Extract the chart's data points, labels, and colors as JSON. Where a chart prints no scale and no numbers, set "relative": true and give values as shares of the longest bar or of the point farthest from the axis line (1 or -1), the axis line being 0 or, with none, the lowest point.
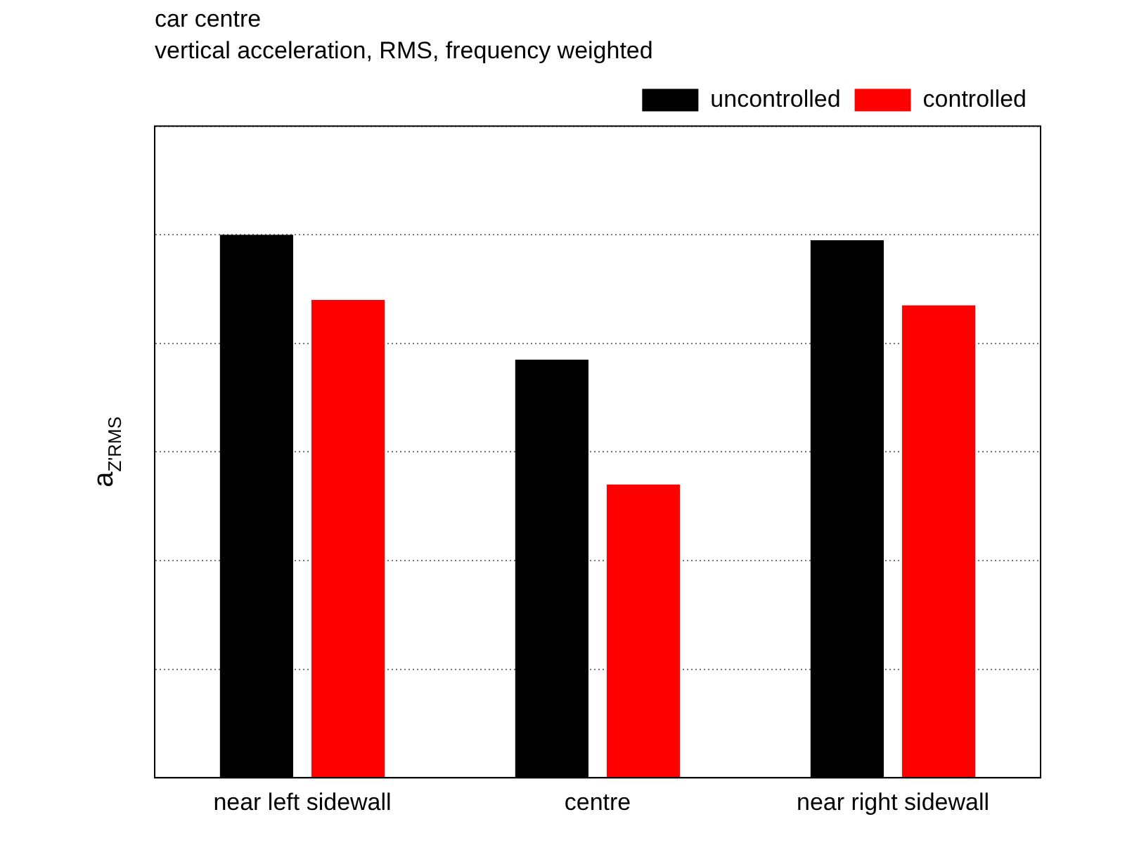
{
  "chart_data": {
    "type": "bar",
    "title": "car centre",
    "subtitle": "vertical acceleration, RMS, frequency weighted",
    "ylabel": "a$_{Z'RMS}$",
    "relative": true,
    "categories": [
      "near left sidewall",
      "centre",
      "near right sidewall"
    ],
    "series": [
      {
        "name": "uncontrolled",
        "color": "#000000",
        "values": [
          1,
          0.77,
          0.99
        ]
      },
      {
        "name": "controlled",
        "color": "#ff0000",
        "values": [
          0.88,
          0.54,
          0.87
        ]
      }
    ],
    "grid": "y",
    "legend": "top right"
  }
}
